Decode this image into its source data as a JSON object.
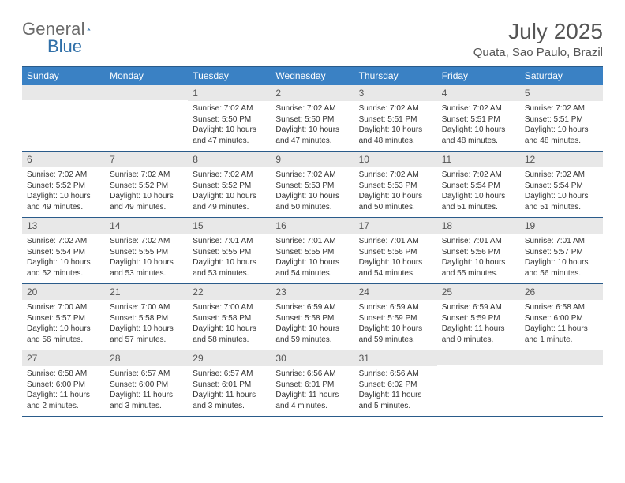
{
  "logo": {
    "word1": "General",
    "word2": "Blue"
  },
  "title": "July 2025",
  "location": "Quata, Sao Paulo, Brazil",
  "colors": {
    "header_bg": "#3a81c4",
    "rule": "#2a5b8a",
    "daynum_bg": "#e8e8e8",
    "text_gray": "#555555"
  },
  "day_names": [
    "Sunday",
    "Monday",
    "Tuesday",
    "Wednesday",
    "Thursday",
    "Friday",
    "Saturday"
  ],
  "weeks": [
    [
      {
        "num": "",
        "sunrise": "",
        "sunset": "",
        "daylight": ""
      },
      {
        "num": "",
        "sunrise": "",
        "sunset": "",
        "daylight": ""
      },
      {
        "num": "1",
        "sunrise": "Sunrise: 7:02 AM",
        "sunset": "Sunset: 5:50 PM",
        "daylight": "Daylight: 10 hours and 47 minutes."
      },
      {
        "num": "2",
        "sunrise": "Sunrise: 7:02 AM",
        "sunset": "Sunset: 5:50 PM",
        "daylight": "Daylight: 10 hours and 47 minutes."
      },
      {
        "num": "3",
        "sunrise": "Sunrise: 7:02 AM",
        "sunset": "Sunset: 5:51 PM",
        "daylight": "Daylight: 10 hours and 48 minutes."
      },
      {
        "num": "4",
        "sunrise": "Sunrise: 7:02 AM",
        "sunset": "Sunset: 5:51 PM",
        "daylight": "Daylight: 10 hours and 48 minutes."
      },
      {
        "num": "5",
        "sunrise": "Sunrise: 7:02 AM",
        "sunset": "Sunset: 5:51 PM",
        "daylight": "Daylight: 10 hours and 48 minutes."
      }
    ],
    [
      {
        "num": "6",
        "sunrise": "Sunrise: 7:02 AM",
        "sunset": "Sunset: 5:52 PM",
        "daylight": "Daylight: 10 hours and 49 minutes."
      },
      {
        "num": "7",
        "sunrise": "Sunrise: 7:02 AM",
        "sunset": "Sunset: 5:52 PM",
        "daylight": "Daylight: 10 hours and 49 minutes."
      },
      {
        "num": "8",
        "sunrise": "Sunrise: 7:02 AM",
        "sunset": "Sunset: 5:52 PM",
        "daylight": "Daylight: 10 hours and 49 minutes."
      },
      {
        "num": "9",
        "sunrise": "Sunrise: 7:02 AM",
        "sunset": "Sunset: 5:53 PM",
        "daylight": "Daylight: 10 hours and 50 minutes."
      },
      {
        "num": "10",
        "sunrise": "Sunrise: 7:02 AM",
        "sunset": "Sunset: 5:53 PM",
        "daylight": "Daylight: 10 hours and 50 minutes."
      },
      {
        "num": "11",
        "sunrise": "Sunrise: 7:02 AM",
        "sunset": "Sunset: 5:54 PM",
        "daylight": "Daylight: 10 hours and 51 minutes."
      },
      {
        "num": "12",
        "sunrise": "Sunrise: 7:02 AM",
        "sunset": "Sunset: 5:54 PM",
        "daylight": "Daylight: 10 hours and 51 minutes."
      }
    ],
    [
      {
        "num": "13",
        "sunrise": "Sunrise: 7:02 AM",
        "sunset": "Sunset: 5:54 PM",
        "daylight": "Daylight: 10 hours and 52 minutes."
      },
      {
        "num": "14",
        "sunrise": "Sunrise: 7:02 AM",
        "sunset": "Sunset: 5:55 PM",
        "daylight": "Daylight: 10 hours and 53 minutes."
      },
      {
        "num": "15",
        "sunrise": "Sunrise: 7:01 AM",
        "sunset": "Sunset: 5:55 PM",
        "daylight": "Daylight: 10 hours and 53 minutes."
      },
      {
        "num": "16",
        "sunrise": "Sunrise: 7:01 AM",
        "sunset": "Sunset: 5:55 PM",
        "daylight": "Daylight: 10 hours and 54 minutes."
      },
      {
        "num": "17",
        "sunrise": "Sunrise: 7:01 AM",
        "sunset": "Sunset: 5:56 PM",
        "daylight": "Daylight: 10 hours and 54 minutes."
      },
      {
        "num": "18",
        "sunrise": "Sunrise: 7:01 AM",
        "sunset": "Sunset: 5:56 PM",
        "daylight": "Daylight: 10 hours and 55 minutes."
      },
      {
        "num": "19",
        "sunrise": "Sunrise: 7:01 AM",
        "sunset": "Sunset: 5:57 PM",
        "daylight": "Daylight: 10 hours and 56 minutes."
      }
    ],
    [
      {
        "num": "20",
        "sunrise": "Sunrise: 7:00 AM",
        "sunset": "Sunset: 5:57 PM",
        "daylight": "Daylight: 10 hours and 56 minutes."
      },
      {
        "num": "21",
        "sunrise": "Sunrise: 7:00 AM",
        "sunset": "Sunset: 5:58 PM",
        "daylight": "Daylight: 10 hours and 57 minutes."
      },
      {
        "num": "22",
        "sunrise": "Sunrise: 7:00 AM",
        "sunset": "Sunset: 5:58 PM",
        "daylight": "Daylight: 10 hours and 58 minutes."
      },
      {
        "num": "23",
        "sunrise": "Sunrise: 6:59 AM",
        "sunset": "Sunset: 5:58 PM",
        "daylight": "Daylight: 10 hours and 59 minutes."
      },
      {
        "num": "24",
        "sunrise": "Sunrise: 6:59 AM",
        "sunset": "Sunset: 5:59 PM",
        "daylight": "Daylight: 10 hours and 59 minutes."
      },
      {
        "num": "25",
        "sunrise": "Sunrise: 6:59 AM",
        "sunset": "Sunset: 5:59 PM",
        "daylight": "Daylight: 11 hours and 0 minutes."
      },
      {
        "num": "26",
        "sunrise": "Sunrise: 6:58 AM",
        "sunset": "Sunset: 6:00 PM",
        "daylight": "Daylight: 11 hours and 1 minute."
      }
    ],
    [
      {
        "num": "27",
        "sunrise": "Sunrise: 6:58 AM",
        "sunset": "Sunset: 6:00 PM",
        "daylight": "Daylight: 11 hours and 2 minutes."
      },
      {
        "num": "28",
        "sunrise": "Sunrise: 6:57 AM",
        "sunset": "Sunset: 6:00 PM",
        "daylight": "Daylight: 11 hours and 3 minutes."
      },
      {
        "num": "29",
        "sunrise": "Sunrise: 6:57 AM",
        "sunset": "Sunset: 6:01 PM",
        "daylight": "Daylight: 11 hours and 3 minutes."
      },
      {
        "num": "30",
        "sunrise": "Sunrise: 6:56 AM",
        "sunset": "Sunset: 6:01 PM",
        "daylight": "Daylight: 11 hours and 4 minutes."
      },
      {
        "num": "31",
        "sunrise": "Sunrise: 6:56 AM",
        "sunset": "Sunset: 6:02 PM",
        "daylight": "Daylight: 11 hours and 5 minutes."
      },
      {
        "num": "",
        "sunrise": "",
        "sunset": "",
        "daylight": ""
      },
      {
        "num": "",
        "sunrise": "",
        "sunset": "",
        "daylight": ""
      }
    ]
  ]
}
